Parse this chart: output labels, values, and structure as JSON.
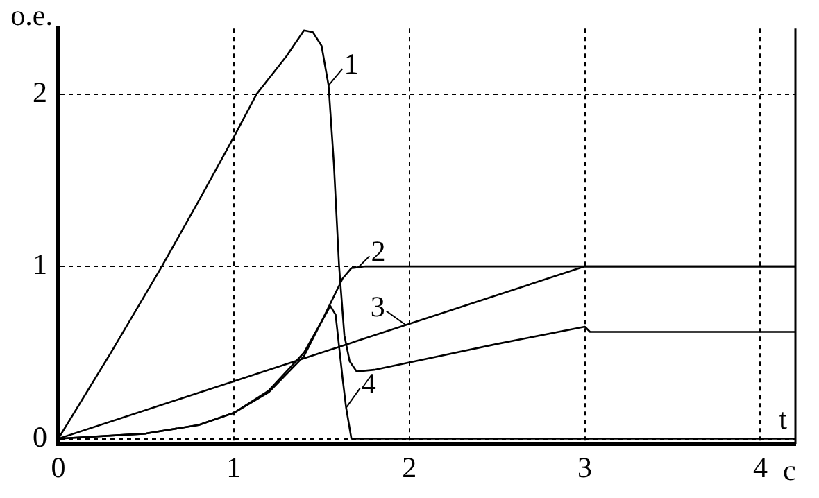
{
  "chart_data": {
    "type": "line",
    "ylabel": "о.е.",
    "xlabel": "c",
    "xlim": [
      0,
      4.2
    ],
    "ylim": [
      -0.03,
      2.38
    ],
    "xticks": [
      0,
      1,
      2,
      3,
      4
    ],
    "yticks": [
      0,
      1,
      2
    ],
    "grid": true,
    "legend": "top left",
    "marker": "none",
    "line_style": "solid",
    "annotations": [
      "t"
    ],
    "series": [
      {
        "name": "1",
        "color": "#000000",
        "x": [
          0,
          0.3,
          0.59,
          0.8,
          1,
          1.13,
          1.3,
          1.4,
          1.45,
          1.5,
          1.54,
          1.57,
          1.6,
          1.63,
          1.66,
          1.7,
          1.8,
          2.5,
          3,
          3.03,
          4.2
        ],
        "values": [
          0,
          0.5,
          1,
          1.38,
          1.75,
          2,
          2.22,
          2.37,
          2.36,
          2.28,
          2.05,
          1.6,
          1.0,
          0.6,
          0.45,
          0.39,
          0.4,
          0.55,
          0.65,
          0.62,
          0.62
        ]
      },
      {
        "name": "2",
        "color": "#000000",
        "x": [
          0,
          0.5,
          0.8,
          1,
          1.2,
          1.4,
          1.5,
          1.62,
          1.67,
          1.75,
          4.2
        ],
        "values": [
          0,
          0.03,
          0.08,
          0.15,
          0.28,
          0.5,
          0.68,
          0.93,
          0.99,
          1,
          1
        ]
      },
      {
        "name": "3",
        "color": "#000000",
        "x": [
          0,
          3,
          4.2
        ],
        "values": [
          0,
          1,
          1
        ]
      },
      {
        "name": "4",
        "color": "#000000",
        "x": [
          0,
          0.5,
          0.8,
          1,
          1.2,
          1.4,
          1.5,
          1.55,
          1.58,
          1.62,
          1.64,
          1.67,
          4.2
        ],
        "values": [
          0,
          0.03,
          0.08,
          0.15,
          0.27,
          0.48,
          0.68,
          0.77,
          0.72,
          0.35,
          0.18,
          0,
          0
        ]
      }
    ]
  }
}
